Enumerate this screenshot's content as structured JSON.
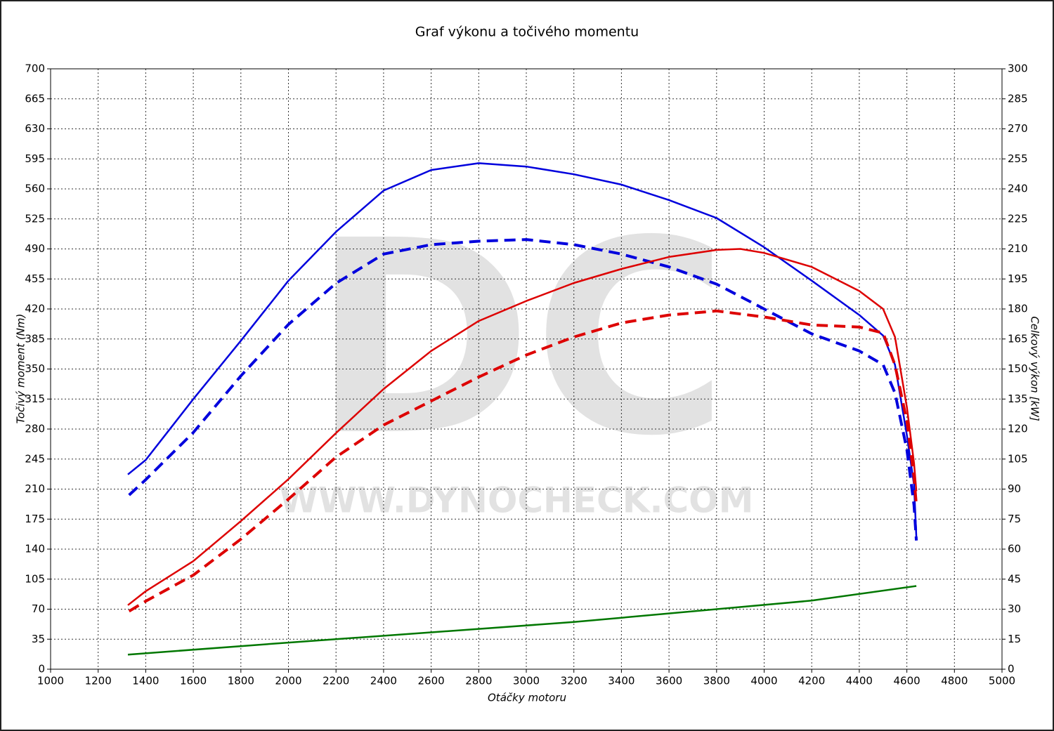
{
  "chart_data": {
    "type": "line",
    "title": "Graf výkonu a točivého momentu",
    "xlabel": "Otáčky motoru",
    "ylabel": "Točivý moment (Nm)",
    "y2label": "Celkový výkon [kW]",
    "watermark": [
      "DC",
      "WWW.DYNOCHECK.COM"
    ],
    "xlim": [
      1000,
      5000
    ],
    "xticks": [
      1000,
      1200,
      1400,
      1600,
      1800,
      2000,
      2200,
      2400,
      2600,
      2800,
      3000,
      3200,
      3400,
      3600,
      3800,
      4000,
      4200,
      4400,
      4600,
      4800,
      5000
    ],
    "ylim": [
      0,
      700
    ],
    "yticks": [
      0,
      35,
      70,
      105,
      140,
      175,
      210,
      245,
      280,
      315,
      350,
      385,
      420,
      455,
      490,
      525,
      560,
      595,
      630,
      665,
      700
    ],
    "y2lim": [
      0,
      300
    ],
    "y2ticks": [
      0,
      15,
      30,
      45,
      60,
      75,
      90,
      105,
      120,
      135,
      150,
      165,
      180,
      195,
      210,
      225,
      240,
      255,
      270,
      285,
      300
    ],
    "grid": true,
    "series": [
      {
        "color": "#0000dd",
        "dashed": false,
        "axis": "y",
        "x": [
          1325,
          1400,
          1600,
          1800,
          2000,
          2200,
          2400,
          2600,
          2800,
          3000,
          3200,
          3400,
          3600,
          3800,
          4000,
          4200,
          4400,
          4500,
          4550,
          4600,
          4630,
          4640
        ],
        "values": [
          227,
          244,
          315,
          383,
          453,
          510,
          558,
          582,
          590,
          586,
          577,
          565,
          547,
          526,
          492,
          453,
          413,
          389,
          355,
          273,
          215,
          154
        ]
      },
      {
        "color": "#0000dd",
        "dashed": true,
        "axis": "y",
        "x": [
          1330,
          1400,
          1600,
          1800,
          2000,
          2200,
          2400,
          2600,
          2800,
          3000,
          3200,
          3400,
          3600,
          3800,
          4000,
          4200,
          4400,
          4500,
          4550,
          4600,
          4630,
          4640
        ],
        "values": [
          203,
          221,
          276,
          342,
          402,
          450,
          484,
          495,
          499,
          501,
          495,
          484,
          469,
          449,
          420,
          391,
          371,
          355,
          322,
          256,
          191,
          150
        ]
      },
      {
        "color": "#dd0000",
        "dashed": false,
        "axis": "y2",
        "x": [
          1325,
          1400,
          1600,
          1800,
          2000,
          2200,
          2400,
          2600,
          2800,
          3000,
          3200,
          3400,
          3600,
          3800,
          3900,
          4000,
          4200,
          4400,
          4500,
          4550,
          4600,
          4630,
          4640
        ],
        "values": [
          32,
          39,
          54,
          74,
          95,
          118,
          140,
          159,
          174,
          184,
          193,
          200,
          206,
          209.5,
          210,
          208,
          201,
          189,
          180,
          166,
          131,
          103,
          89
        ]
      },
      {
        "color": "#dd0000",
        "dashed": true,
        "axis": "y2",
        "x": [
          1330,
          1400,
          1600,
          1800,
          2000,
          2200,
          2400,
          2600,
          2800,
          3000,
          3200,
          3400,
          3600,
          3800,
          4000,
          4200,
          4400,
          4500,
          4550,
          4600,
          4630,
          4640
        ],
        "values": [
          29,
          34,
          47,
          65,
          85,
          106,
          122,
          134,
          146,
          157,
          166,
          173,
          177,
          179,
          176,
          172,
          171,
          168,
          152,
          124,
          96,
          82
        ]
      },
      {
        "color": "#007700",
        "dashed": false,
        "axis": "y",
        "x": [
          1325,
          2000,
          2600,
          3200,
          3800,
          4200,
          4640
        ],
        "values": [
          17,
          31,
          43,
          55,
          70,
          80,
          97
        ]
      }
    ]
  }
}
